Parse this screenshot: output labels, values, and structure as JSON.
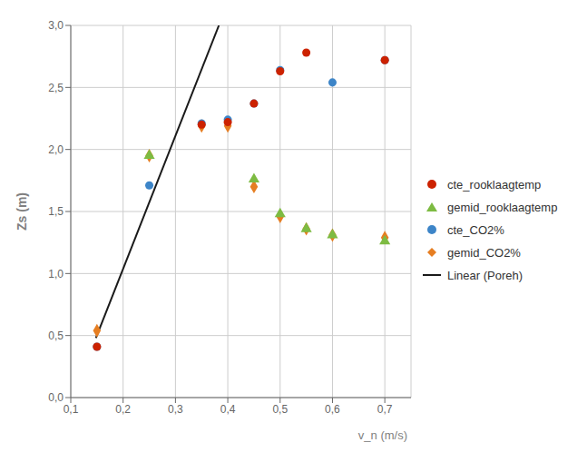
{
  "chart_data": {
    "type": "scatter",
    "x_label": "v_n (m/s)",
    "y_label": "Zs (m)",
    "grid": true,
    "legend": "right",
    "xlim": [
      0.1,
      0.75
    ],
    "ylim": [
      0.0,
      3.0
    ],
    "xticks": [
      {
        "value": 0.1,
        "label": "0,1"
      },
      {
        "value": 0.2,
        "label": "0,2"
      },
      {
        "value": 0.3,
        "label": "0,3"
      },
      {
        "value": 0.4,
        "label": "0,4"
      },
      {
        "value": 0.5,
        "label": "0,5"
      },
      {
        "value": 0.6,
        "label": "0,6"
      },
      {
        "value": 0.7,
        "label": "0,7"
      }
    ],
    "yticks": [
      {
        "value": 0.0,
        "label": "0,0"
      },
      {
        "value": 0.5,
        "label": "0,5"
      },
      {
        "value": 1.0,
        "label": "1,0"
      },
      {
        "value": 1.5,
        "label": "1,5"
      },
      {
        "value": 2.0,
        "label": "2,0"
      },
      {
        "value": 2.5,
        "label": "2,5"
      },
      {
        "value": 3.0,
        "label": "3,0"
      }
    ],
    "series": [
      {
        "name": "cte_rooklaagtemp",
        "type": "scatter",
        "color": "#cc2200",
        "marker": "circle",
        "x": [
          0.15,
          0.35,
          0.4,
          0.45,
          0.5,
          0.55,
          0.7
        ],
        "values": [
          0.41,
          2.2,
          2.22,
          2.37,
          2.63,
          2.78,
          2.72
        ]
      },
      {
        "name": "gemid_rooklaagtemp",
        "type": "scatter",
        "color": "#7dbb42",
        "marker": "triangle",
        "x": [
          0.25,
          0.45,
          0.5,
          0.55,
          0.6,
          0.7
        ],
        "values": [
          1.95,
          1.76,
          1.48,
          1.36,
          1.31,
          1.26
        ]
      },
      {
        "name": "cte_CO2%",
        "type": "scatter",
        "color": "#3d85c8",
        "marker": "circle",
        "x": [
          0.15,
          0.25,
          0.35,
          0.4,
          0.45,
          0.5,
          0.6,
          0.7
        ],
        "values": [
          0.41,
          1.71,
          2.21,
          2.24,
          2.37,
          2.64,
          2.54,
          2.72
        ]
      },
      {
        "name": "gemid_CO2%",
        "type": "scatter",
        "color": "#e67e22",
        "marker": "diamond",
        "x": [
          0.15,
          0.25,
          0.35,
          0.4,
          0.45,
          0.5,
          0.55,
          0.6,
          0.7
        ],
        "values": [
          0.54,
          1.95,
          2.19,
          2.19,
          1.7,
          1.46,
          1.36,
          1.31,
          1.29
        ]
      },
      {
        "name": "Linear (Poreh)",
        "type": "line",
        "color": "#1a1a1a",
        "line_style": "solid",
        "x": [
          0.148,
          0.383
        ],
        "values": [
          0.48,
          3.0
        ]
      }
    ]
  }
}
